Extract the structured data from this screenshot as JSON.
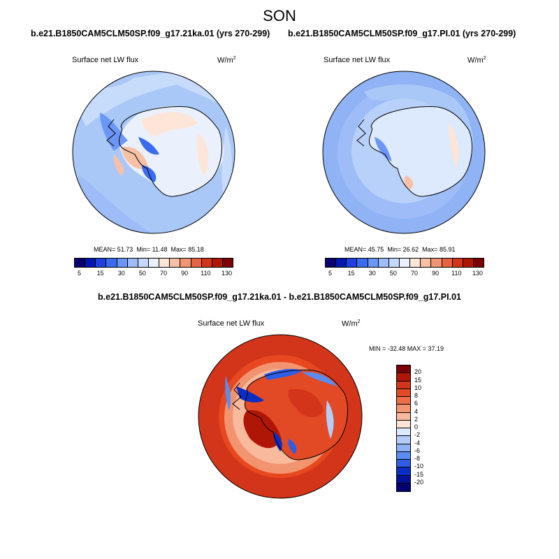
{
  "figure": {
    "season": "SON",
    "panel_left": {
      "title": "b.e21.B1850CAM5CLM50SP.f09_g17.21ka.01 (yrs 270-299)",
      "variable": "Surface net LW flux",
      "units_base": "W/m",
      "units_exp": "2",
      "stats": {
        "mean_label": "MEAN=",
        "mean": "51.73",
        "min_label": "Min=",
        "min": "11.48",
        "max_label": "Max=",
        "max": "85.18"
      }
    },
    "panel_right": {
      "title": "b.e21.B1850CAM5CLM50SP.f09_g17.PI.01 (yrs 270-299)",
      "variable": "Surface net LW flux",
      "units_base": "W/m",
      "units_exp": "2",
      "stats": {
        "mean_label": "MEAN=",
        "mean": "45.75",
        "min_label": "Min=",
        "min": "26.62",
        "max_label": "Max=",
        "max": "85.91"
      }
    },
    "panel_diff": {
      "title": "b.e21.B1850CAM5CLM50SP.f09_g17.21ka.01 - b.e21.B1850CAM5CLM50SP.f09_g17.PI.01",
      "variable": "Surface net LW flux",
      "units_base": "W/m",
      "units_exp": "2",
      "minmax": "MIN = -32.48 MAX =  37.19"
    },
    "colorbar_top": {
      "labels": [
        "5",
        "15",
        "30",
        "50",
        "70",
        "90",
        "110",
        "130"
      ],
      "colors": [
        "#08006f",
        "#0018b0",
        "#1f3fe0",
        "#3b6cf0",
        "#6b96f5",
        "#9dbcf8",
        "#c6d9fb",
        "#eaf1fd",
        "#fde5d8",
        "#f8c0a5",
        "#f19472",
        "#e76341",
        "#d2351a",
        "#b01606",
        "#7a0003"
      ]
    },
    "colorbar_diff": {
      "labels": [
        "20",
        "15",
        "10",
        "8",
        "6",
        "4",
        "2",
        "0",
        "-2",
        "-4",
        "-6",
        "-8",
        "-10",
        "-15",
        "-20"
      ],
      "colors": [
        "#7a0003",
        "#b01606",
        "#d2351a",
        "#e24a26",
        "#ed6e49",
        "#f39470",
        "#f8b99d",
        "#fde3d6",
        "#dde9fc",
        "#b4cef9",
        "#8eb2f6",
        "#5a8cf1",
        "#2f5ee6",
        "#0a2ec4",
        "#02109a",
        "#010070"
      ]
    },
    "map_colors": {
      "ocean_left": "#aac8f7",
      "ocean_right": "#8fb3f4",
      "ocean_diff": "#e8481f"
    }
  }
}
